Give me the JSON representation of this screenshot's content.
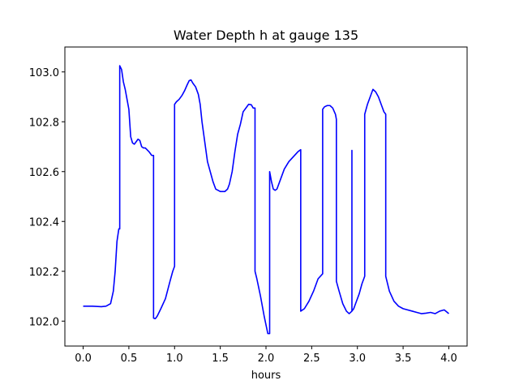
{
  "chart_data": {
    "type": "line",
    "title": "Water Depth h at gauge 135",
    "xlabel": "hours",
    "ylabel": "",
    "xlim": [
      -0.2,
      4.2
    ],
    "ylim": [
      101.9,
      103.1
    ],
    "grid": false,
    "x_ticks": [
      0.0,
      0.5,
      1.0,
      1.5,
      2.0,
      2.5,
      3.0,
      3.5,
      4.0
    ],
    "x_tick_labels": [
      "0.0",
      "0.5",
      "1.0",
      "1.5",
      "2.0",
      "2.5",
      "3.0",
      "3.5",
      "4.0"
    ],
    "y_ticks": [
      102.0,
      102.2,
      102.4,
      102.6,
      102.8,
      103.0
    ],
    "y_tick_labels": [
      "102.0",
      "102.2",
      "102.4",
      "102.6",
      "102.8",
      "103.0"
    ],
    "series": [
      {
        "color": "#0000ff",
        "x": [
          0.0,
          0.1,
          0.2,
          0.25,
          0.3,
          0.33,
          0.35,
          0.37,
          0.39,
          0.4,
          0.4,
          0.42,
          0.44,
          0.46,
          0.48,
          0.5,
          0.52,
          0.54,
          0.56,
          0.58,
          0.6,
          0.62,
          0.64,
          0.66,
          0.68,
          0.72,
          0.75,
          0.77,
          0.77,
          0.79,
          0.81,
          0.85,
          0.9,
          0.95,
          0.98,
          1.0,
          1.0,
          1.02,
          1.05,
          1.08,
          1.11,
          1.14,
          1.16,
          1.18,
          1.2,
          1.23,
          1.26,
          1.28,
          1.3,
          1.33,
          1.36,
          1.39,
          1.42,
          1.45,
          1.5,
          1.55,
          1.58,
          1.6,
          1.63,
          1.66,
          1.69,
          1.72,
          1.75,
          1.78,
          1.81,
          1.84,
          1.86,
          1.88,
          1.88,
          1.9,
          1.94,
          1.98,
          2.02,
          2.04,
          2.04,
          2.06,
          2.08,
          2.1,
          2.12,
          2.15,
          2.2,
          2.25,
          2.3,
          2.35,
          2.38,
          2.38,
          2.42,
          2.47,
          2.52,
          2.57,
          2.62,
          2.62,
          2.64,
          2.67,
          2.7,
          2.73,
          2.76,
          2.77,
          2.77,
          2.8,
          2.84,
          2.88,
          2.91,
          2.94,
          2.94,
          2.94,
          2.96,
          2.99,
          3.02,
          3.05,
          3.08,
          3.08,
          3.11,
          3.14,
          3.17,
          3.2,
          3.23,
          3.26,
          3.29,
          3.31,
          3.31,
          3.35,
          3.4,
          3.45,
          3.5,
          3.6,
          3.65,
          3.7,
          3.75,
          3.8,
          3.85,
          3.9,
          3.95,
          4.0
        ],
        "y": [
          102.06,
          102.06,
          102.058,
          102.06,
          102.07,
          102.12,
          102.2,
          102.32,
          102.37,
          102.37,
          103.025,
          103.01,
          102.96,
          102.93,
          102.89,
          102.85,
          102.74,
          102.715,
          102.71,
          102.72,
          102.73,
          102.725,
          102.7,
          102.695,
          102.695,
          102.68,
          102.665,
          102.665,
          102.012,
          102.01,
          102.02,
          102.05,
          102.09,
          102.16,
          102.2,
          102.22,
          102.87,
          102.88,
          102.89,
          102.905,
          102.925,
          102.95,
          102.965,
          102.968,
          102.955,
          102.94,
          102.91,
          102.87,
          102.8,
          102.72,
          102.64,
          102.6,
          102.56,
          102.53,
          102.52,
          102.52,
          102.53,
          102.55,
          102.6,
          102.68,
          102.75,
          102.79,
          102.84,
          102.855,
          102.87,
          102.868,
          102.855,
          102.855,
          102.2,
          102.17,
          102.1,
          102.02,
          101.95,
          101.95,
          102.6,
          102.56,
          102.53,
          102.525,
          102.53,
          102.56,
          102.61,
          102.64,
          102.66,
          102.68,
          102.688,
          102.04,
          102.05,
          102.08,
          102.12,
          102.17,
          102.19,
          102.85,
          102.86,
          102.865,
          102.865,
          102.855,
          102.83,
          102.81,
          102.16,
          102.12,
          102.07,
          102.04,
          102.03,
          102.04,
          102.685,
          102.04,
          102.05,
          102.08,
          102.11,
          102.15,
          102.18,
          102.83,
          102.87,
          102.9,
          102.93,
          102.92,
          102.9,
          102.87,
          102.84,
          102.83,
          102.18,
          102.12,
          102.08,
          102.06,
          102.05,
          102.04,
          102.035,
          102.03,
          102.032,
          102.035,
          102.03,
          102.04,
          102.045,
          102.03
        ]
      }
    ]
  }
}
